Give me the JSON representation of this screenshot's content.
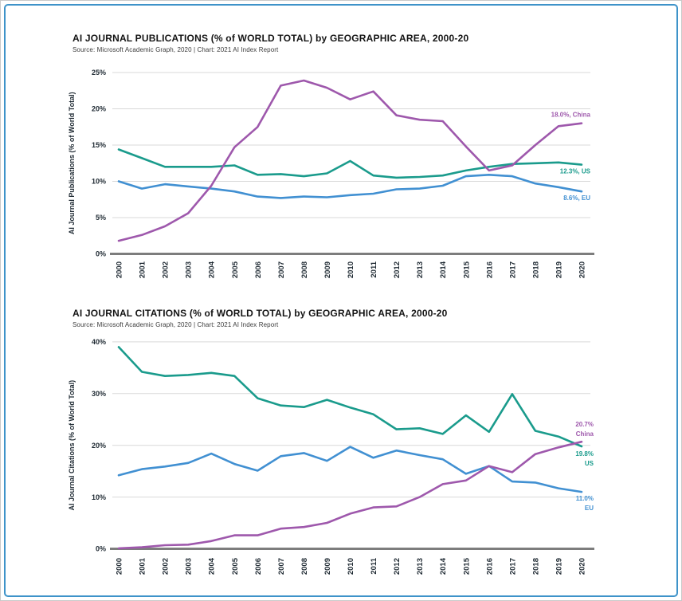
{
  "page": {
    "background": "#ffffff",
    "border_color": "#3E93C9",
    "gridline_color": "#d9d9d9",
    "axisline_color": "#7d7d7d",
    "text_color": "#1f2a33"
  },
  "chart_data": [
    {
      "type": "line",
      "title": "AI JOURNAL PUBLICATIONS (% of WORLD TOTAL) by GEOGRAPHIC AREA, 2000-20",
      "source": "Source: Microsoft Academic Graph, 2020 | Chart: 2021 AI Index Report",
      "xlabel": "",
      "ylabel": "AI Journal Publications (% of World Total)",
      "ylim": [
        0,
        25
      ],
      "ytick_step": 5,
      "ytick_labels": [
        "0%",
        "5%",
        "10%",
        "15%",
        "20%",
        "25%"
      ],
      "grid": true,
      "legend": "end-of-line labels",
      "x": [
        2000,
        2001,
        2002,
        2003,
        2004,
        2005,
        2006,
        2007,
        2008,
        2009,
        2010,
        2011,
        2012,
        2013,
        2014,
        2015,
        2016,
        2017,
        2018,
        2019,
        2020
      ],
      "series": [
        {
          "name": "US",
          "color": "#1A9B8C",
          "values": [
            14.4,
            13.2,
            12.0,
            12.0,
            12.0,
            12.2,
            10.9,
            11.0,
            10.7,
            11.1,
            12.8,
            10.8,
            10.5,
            10.6,
            10.8,
            11.5,
            12.0,
            12.4,
            12.5,
            12.6,
            12.3
          ],
          "end_label_lines": [
            "12.3%, US"
          ]
        },
        {
          "name": "EU",
          "color": "#4190D2",
          "values": [
            10.0,
            9.0,
            9.6,
            9.3,
            9.0,
            8.6,
            7.9,
            7.7,
            7.9,
            7.8,
            8.1,
            8.3,
            8.9,
            9.0,
            9.4,
            10.7,
            10.9,
            10.7,
            9.7,
            9.2,
            8.6
          ],
          "end_label_lines": [
            "8.6%, EU"
          ]
        },
        {
          "name": "China",
          "color": "#9E58AC",
          "values": [
            1.8,
            2.6,
            3.8,
            5.6,
            9.4,
            14.7,
            17.5,
            23.2,
            23.9,
            22.9,
            21.3,
            22.4,
            19.1,
            18.5,
            18.3,
            14.8,
            11.5,
            12.2,
            15.0,
            17.6,
            18.0
          ],
          "end_label_lines": [
            "18.0%, China"
          ]
        }
      ]
    },
    {
      "type": "line",
      "title": "AI JOURNAL CITATIONS (% of WORLD TOTAL) by GEOGRAPHIC AREA, 2000-20",
      "source": "Source: Microsoft Academic Graph, 2020 | Chart: 2021 AI Index Report",
      "xlabel": "",
      "ylabel": "AI Journal Citations (% of World Total)",
      "ylim": [
        0,
        40
      ],
      "ytick_step": 10,
      "ytick_labels": [
        "0%",
        "10%",
        "20%",
        "30%",
        "40%"
      ],
      "grid": true,
      "legend": "end-of-line labels",
      "x": [
        2000,
        2001,
        2002,
        2003,
        2004,
        2005,
        2006,
        2007,
        2008,
        2009,
        2010,
        2011,
        2012,
        2013,
        2014,
        2015,
        2016,
        2017,
        2018,
        2019,
        2020
      ],
      "series": [
        {
          "name": "US",
          "color": "#1A9B8C",
          "values": [
            39.0,
            34.2,
            33.4,
            33.6,
            34.0,
            33.4,
            29.1,
            27.7,
            27.4,
            28.8,
            27.3,
            26.0,
            23.1,
            23.3,
            22.2,
            25.8,
            22.6,
            29.9,
            22.8,
            21.7,
            19.8
          ],
          "end_label_lines": [
            "19.8%",
            "US"
          ]
        },
        {
          "name": "EU",
          "color": "#4190D2",
          "values": [
            14.2,
            15.4,
            15.9,
            16.6,
            18.4,
            16.4,
            15.1,
            17.9,
            18.5,
            17.0,
            19.7,
            17.6,
            19.0,
            18.1,
            17.3,
            14.5,
            16.0,
            13.0,
            12.8,
            11.7,
            11.0
          ],
          "end_label_lines": [
            "11.0%",
            "EU"
          ]
        },
        {
          "name": "China",
          "color": "#9E58AC",
          "values": [
            0.1,
            0.3,
            0.7,
            0.8,
            1.5,
            2.6,
            2.6,
            3.9,
            4.2,
            5.0,
            6.8,
            8.0,
            8.2,
            10.0,
            12.5,
            13.2,
            16.0,
            14.8,
            18.3,
            19.6,
            20.7
          ],
          "end_label_lines": [
            "20.7%",
            "China"
          ]
        }
      ]
    }
  ]
}
